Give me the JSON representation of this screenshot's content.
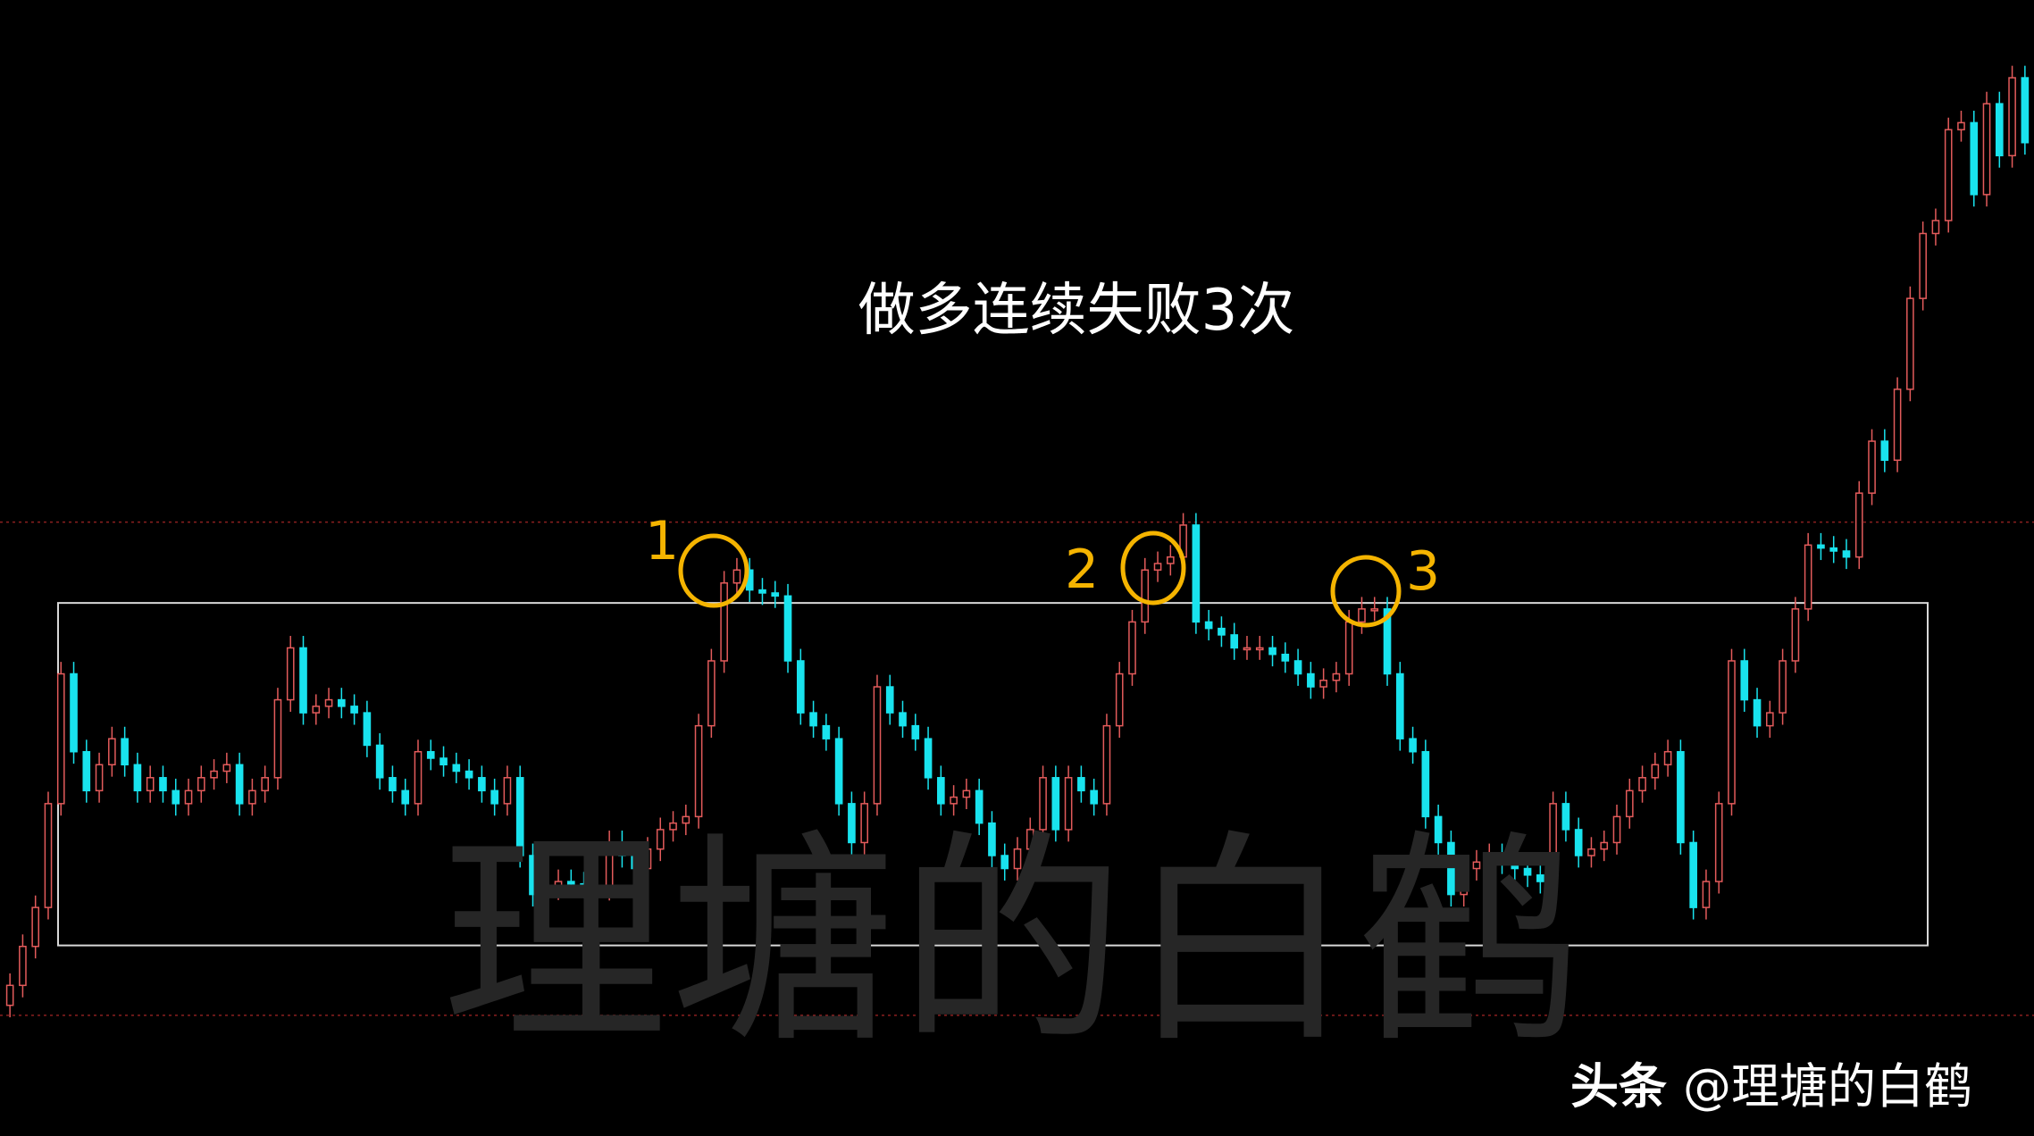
{
  "annotation_title": "做多连续失败3次",
  "watermark": "理塘的白鹤",
  "credit": {
    "brand": "头条",
    "handle": "@理塘的白鹤"
  },
  "markers": [
    {
      "label": "1"
    },
    {
      "label": "2"
    },
    {
      "label": "3"
    }
  ],
  "colors": {
    "up": "#e35b5b",
    "down": "#19e3ee",
    "marker": "#f5b400",
    "box": "#d8d8d8",
    "ref_line": "#8b1f1f"
  },
  "chart_data": {
    "type": "candlestick",
    "title": "",
    "xlabel": "",
    "ylabel": "",
    "axes_visible": false,
    "grid": false,
    "ylim": [
      0,
      100
    ],
    "bars": [
      0,
      2,
      3,
      4,
      5,
      6,
      8,
      10,
      11,
      13,
      15,
      17,
      18,
      20,
      21,
      22,
      23,
      25,
      27,
      29,
      31,
      32,
      34,
      36,
      38,
      39,
      40,
      41,
      43,
      46,
      47,
      49,
      51,
      53,
      54,
      55,
      56,
      57,
      58,
      60,
      61,
      62,
      64,
      65,
      66,
      67,
      68,
      69,
      71,
      72,
      73,
      75,
      77,
      78,
      80,
      81,
      82,
      83,
      85,
      86,
      87,
      88,
      89,
      91,
      92,
      93,
      95,
      96,
      98,
      100,
      102,
      104,
      105,
      106,
      107,
      108,
      109,
      110,
      111,
      112,
      113,
      114,
      116,
      118,
      120,
      121,
      123,
      125,
      127,
      129,
      130,
      131,
      132,
      133,
      134,
      135,
      136,
      137,
      138,
      139,
      140,
      141,
      143,
      144,
      145,
      146,
      147,
      148,
      149,
      150,
      151,
      152,
      153,
      154,
      155,
      156,
      157,
      158
    ],
    "close": [
      6.5,
      14.3,
      24.7,
      37.7,
      29.9,
      26.0,
      31.2,
      26.0,
      27.3,
      24.7,
      27.3,
      28.6,
      24.7,
      27.3,
      35.1,
      40.3,
      33.8,
      35.1,
      33.8,
      27.3,
      24.7,
      29.9,
      28.6,
      27.3,
      24.7,
      27.3,
      19.5,
      15.6,
      16.9,
      16.2,
      20.8,
      18.2,
      22.1,
      23.4,
      32.5,
      39.0,
      46.8,
      48.1,
      46.1,
      45.5,
      39.0,
      33.8,
      31.2,
      24.7,
      20.8,
      24.7,
      36.4,
      33.8,
      31.2,
      27.3,
      24.7,
      26.0,
      19.5,
      18.2,
      22.1,
      27.3,
      22.1,
      27.3,
      24.7,
      32.5,
      37.7,
      42.9,
      48.1,
      49.4,
      52.6,
      42.9,
      41.6,
      40.3,
      40.3,
      39.0,
      36.4,
      37.7,
      42.9,
      44.2,
      44.2,
      37.7,
      31.2,
      29.9,
      23.4,
      20.8,
      15.6,
      18.2,
      19.5,
      18.2,
      16.9,
      24.7,
      19.5,
      20.8,
      26.0,
      28.6,
      29.9,
      20.8,
      14.3,
      16.9,
      24.7,
      39.0,
      35.1,
      32.5,
      33.8,
      39.0,
      44.2,
      50.6,
      50.0,
      49.4,
      55.8,
      61.0,
      59.1,
      66.2,
      75.3,
      81.8,
      83.1,
      92.2,
      92.9,
      85.7,
      94.8,
      89.6,
      97.4,
      90.9
    ],
    "reference_lines": [
      52.9,
      3.5
    ],
    "range_box": {
      "low": 10.5,
      "high": 44.8
    }
  }
}
